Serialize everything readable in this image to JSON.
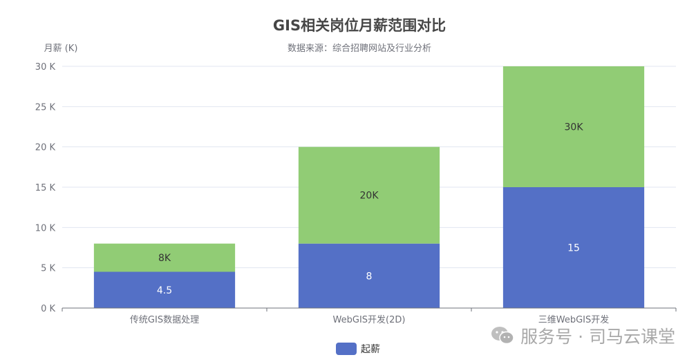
{
  "chart_data": {
    "type": "bar",
    "stacked": true,
    "title": "GIS相关岗位月薪范围对比",
    "subtitle": "数据来源：综合招聘网站及行业分析",
    "ylabel": "月薪 (K)",
    "ylim": [
      0,
      30
    ],
    "yticks": [
      0,
      5,
      10,
      15,
      20,
      25,
      30
    ],
    "ytick_labels": [
      "0 K",
      "5 K",
      "10 K",
      "15 K",
      "20 K",
      "25 K",
      "30 K"
    ],
    "grid": true,
    "categories": [
      "传统GIS数据处理",
      "WebGIS开发(2D)",
      "三维WebGIS开发"
    ],
    "series": [
      {
        "name": "起薪",
        "color": "#5470c6",
        "values": [
          4.5,
          8,
          15
        ],
        "labels": [
          "4.5",
          "8",
          "15"
        ],
        "label_color": "#ffffff"
      },
      {
        "color": "#91cc75",
        "values": [
          3.5,
          12,
          15
        ],
        "labels": [
          "8K",
          "20K",
          "30K"
        ],
        "label_color": "#333333"
      }
    ],
    "legend": {
      "placement": "bottom-center",
      "items": [
        "起薪"
      ]
    }
  },
  "watermark": {
    "text": "服务号 · 司马云课堂",
    "icon": "wechat-icon"
  }
}
